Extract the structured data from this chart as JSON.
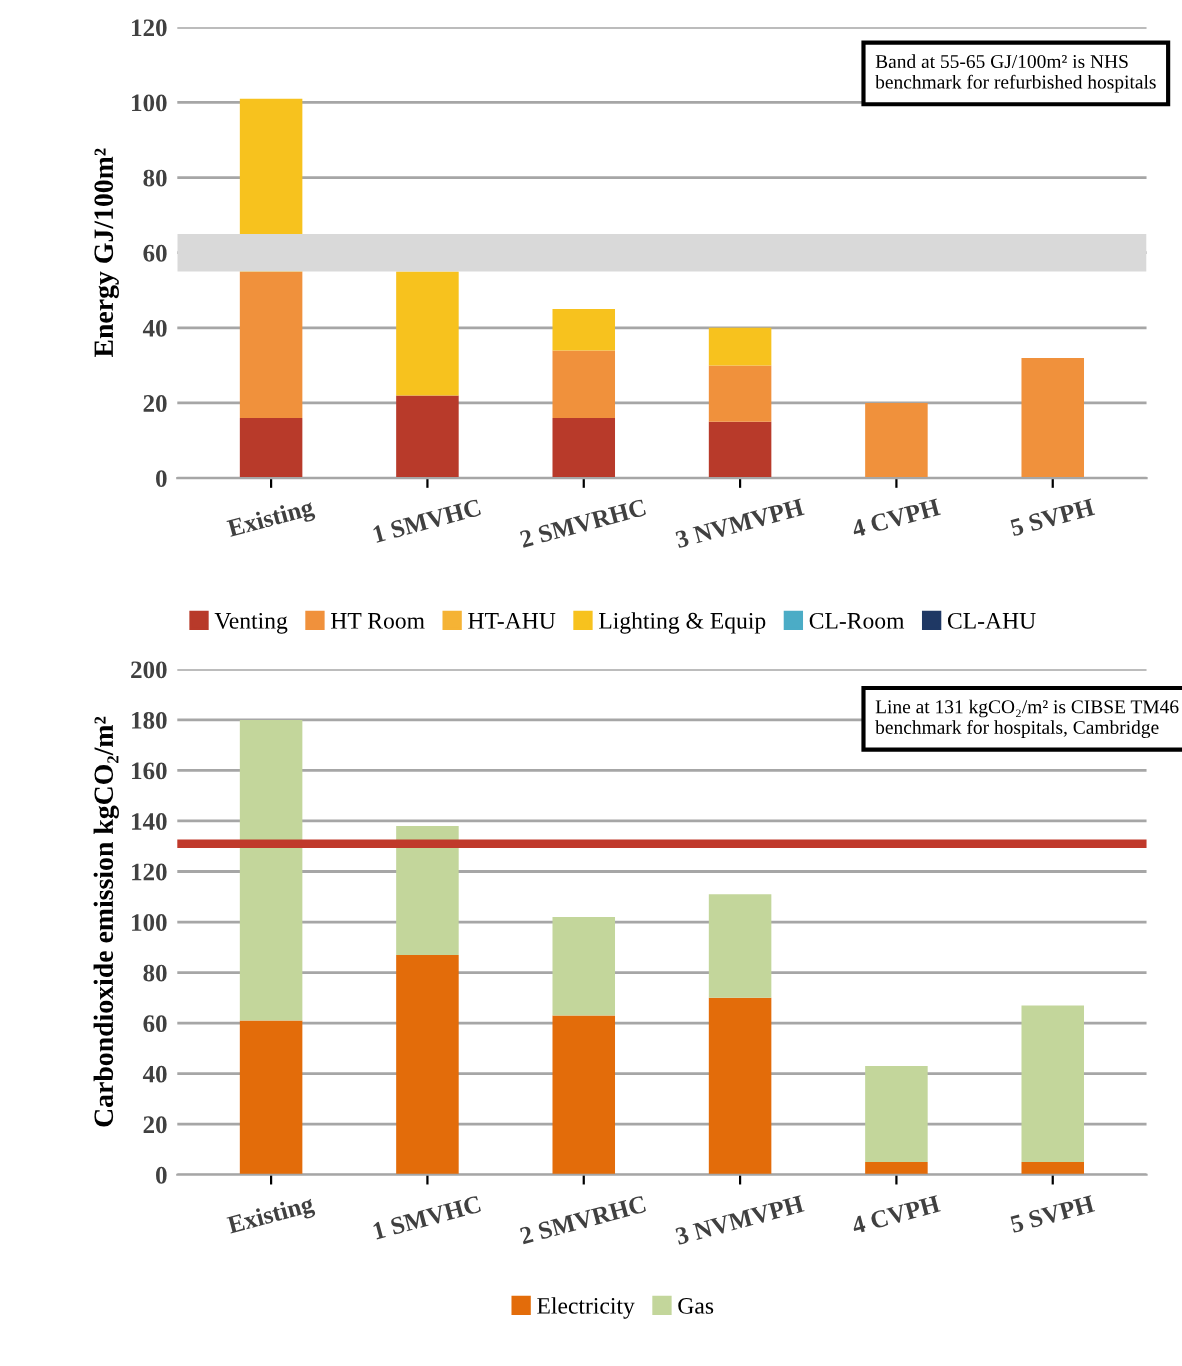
{
  "chart_data": [
    {
      "type": "bar",
      "stacked": true,
      "ylabel": "Energy GJ/100m²",
      "categories": [
        "Existing",
        "1 SMVHC",
        "2 SMVRHC",
        "3 NVMVPH",
        "4 CVPH",
        "5 SVPH"
      ],
      "series": [
        {
          "name": "Venting",
          "color": "#b83a2a",
          "values": [
            16,
            22,
            16,
            15,
            0,
            0
          ]
        },
        {
          "name": "HT Room",
          "color": "#f0913c",
          "values": [
            39,
            0,
            18,
            15,
            20,
            32
          ]
        },
        {
          "name": "HT-AHU",
          "color": "#f5b335",
          "values": [
            0,
            0,
            0,
            0,
            0,
            0
          ]
        },
        {
          "name": "Lighting & Equip",
          "color": "#f7c21e",
          "values": [
            46,
            33,
            11,
            10,
            0,
            0
          ]
        },
        {
          "name": "CL-Room",
          "color": "#4bacc6",
          "values": [
            0,
            0,
            0,
            0,
            0,
            0
          ]
        },
        {
          "name": "CL-AHU",
          "color": "#1f3864",
          "values": [
            0,
            0,
            0,
            0,
            0,
            0
          ]
        }
      ],
      "ylim": [
        0,
        120
      ],
      "yticks": [
        0,
        20,
        40,
        60,
        80,
        100,
        120
      ],
      "grid": "y",
      "legend": "bottom",
      "bands": [
        {
          "axis": "y",
          "from": 55,
          "to": 65,
          "color": "#d9d9d9"
        }
      ],
      "annotations": [
        "Band at 55-65 GJ/100m² is NHS benchmark for refurbished hospitals"
      ]
    },
    {
      "type": "bar",
      "stacked": true,
      "ylabel": "Carbondioxide emission kgCO₂/m²",
      "categories": [
        "Existing",
        "1 SMVHC",
        "2 SMVRHC",
        "3 NVMVPH",
        "4 CVPH",
        "5 SVPH"
      ],
      "series": [
        {
          "name": "Electricity",
          "color": "#e36c0a",
          "values": [
            61,
            87,
            63,
            70,
            5,
            5
          ]
        },
        {
          "name": "Gas",
          "color": "#c3d69b",
          "values": [
            119,
            51,
            39,
            41,
            38,
            62
          ]
        }
      ],
      "ylim": [
        0,
        200
      ],
      "yticks": [
        0,
        20,
        40,
        60,
        80,
        100,
        120,
        140,
        160,
        180,
        200
      ],
      "grid": "y",
      "legend": "bottom",
      "ref_lines": [
        {
          "axis": "y",
          "value": 131,
          "color": "#c0392b"
        }
      ],
      "annotations": [
        "Line at 131 kgCO₂/m² is CIBSE TM46 benchmark for hospitals, Cambridge"
      ]
    }
  ]
}
